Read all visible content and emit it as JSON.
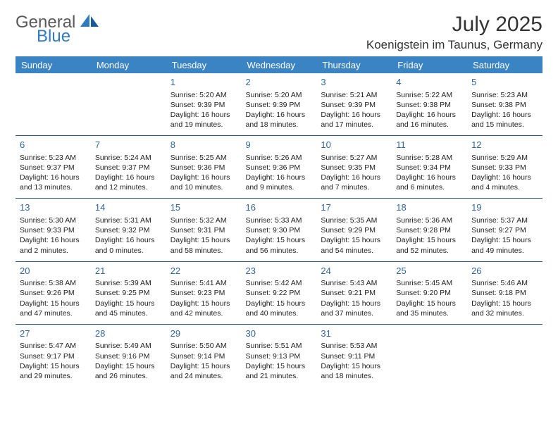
{
  "brand": {
    "part1": "General",
    "part2": "Blue"
  },
  "title": "July 2025",
  "location": "Koenigstein im Taunus, Germany",
  "colors": {
    "header_bg": "#3b84c4",
    "header_text": "#ffffff",
    "daynum": "#336699",
    "rule": "#2a5a8a",
    "brand_gray": "#5a5a5a",
    "brand_blue": "#2f7ac0"
  },
  "weekdays": [
    "Sunday",
    "Monday",
    "Tuesday",
    "Wednesday",
    "Thursday",
    "Friday",
    "Saturday"
  ],
  "leading_blanks": 2,
  "days": [
    {
      "n": 1,
      "sr": "5:20 AM",
      "ss": "9:39 PM",
      "dl": "16 hours and 19 minutes."
    },
    {
      "n": 2,
      "sr": "5:20 AM",
      "ss": "9:39 PM",
      "dl": "16 hours and 18 minutes."
    },
    {
      "n": 3,
      "sr": "5:21 AM",
      "ss": "9:39 PM",
      "dl": "16 hours and 17 minutes."
    },
    {
      "n": 4,
      "sr": "5:22 AM",
      "ss": "9:38 PM",
      "dl": "16 hours and 16 minutes."
    },
    {
      "n": 5,
      "sr": "5:23 AM",
      "ss": "9:38 PM",
      "dl": "16 hours and 15 minutes."
    },
    {
      "n": 6,
      "sr": "5:23 AM",
      "ss": "9:37 PM",
      "dl": "16 hours and 13 minutes."
    },
    {
      "n": 7,
      "sr": "5:24 AM",
      "ss": "9:37 PM",
      "dl": "16 hours and 12 minutes."
    },
    {
      "n": 8,
      "sr": "5:25 AM",
      "ss": "9:36 PM",
      "dl": "16 hours and 10 minutes."
    },
    {
      "n": 9,
      "sr": "5:26 AM",
      "ss": "9:36 PM",
      "dl": "16 hours and 9 minutes."
    },
    {
      "n": 10,
      "sr": "5:27 AM",
      "ss": "9:35 PM",
      "dl": "16 hours and 7 minutes."
    },
    {
      "n": 11,
      "sr": "5:28 AM",
      "ss": "9:34 PM",
      "dl": "16 hours and 6 minutes."
    },
    {
      "n": 12,
      "sr": "5:29 AM",
      "ss": "9:33 PM",
      "dl": "16 hours and 4 minutes."
    },
    {
      "n": 13,
      "sr": "5:30 AM",
      "ss": "9:33 PM",
      "dl": "16 hours and 2 minutes."
    },
    {
      "n": 14,
      "sr": "5:31 AM",
      "ss": "9:32 PM",
      "dl": "16 hours and 0 minutes."
    },
    {
      "n": 15,
      "sr": "5:32 AM",
      "ss": "9:31 PM",
      "dl": "15 hours and 58 minutes."
    },
    {
      "n": 16,
      "sr": "5:33 AM",
      "ss": "9:30 PM",
      "dl": "15 hours and 56 minutes."
    },
    {
      "n": 17,
      "sr": "5:35 AM",
      "ss": "9:29 PM",
      "dl": "15 hours and 54 minutes."
    },
    {
      "n": 18,
      "sr": "5:36 AM",
      "ss": "9:28 PM",
      "dl": "15 hours and 52 minutes."
    },
    {
      "n": 19,
      "sr": "5:37 AM",
      "ss": "9:27 PM",
      "dl": "15 hours and 49 minutes."
    },
    {
      "n": 20,
      "sr": "5:38 AM",
      "ss": "9:26 PM",
      "dl": "15 hours and 47 minutes."
    },
    {
      "n": 21,
      "sr": "5:39 AM",
      "ss": "9:25 PM",
      "dl": "15 hours and 45 minutes."
    },
    {
      "n": 22,
      "sr": "5:41 AM",
      "ss": "9:23 PM",
      "dl": "15 hours and 42 minutes."
    },
    {
      "n": 23,
      "sr": "5:42 AM",
      "ss": "9:22 PM",
      "dl": "15 hours and 40 minutes."
    },
    {
      "n": 24,
      "sr": "5:43 AM",
      "ss": "9:21 PM",
      "dl": "15 hours and 37 minutes."
    },
    {
      "n": 25,
      "sr": "5:45 AM",
      "ss": "9:20 PM",
      "dl": "15 hours and 35 minutes."
    },
    {
      "n": 26,
      "sr": "5:46 AM",
      "ss": "9:18 PM",
      "dl": "15 hours and 32 minutes."
    },
    {
      "n": 27,
      "sr": "5:47 AM",
      "ss": "9:17 PM",
      "dl": "15 hours and 29 minutes."
    },
    {
      "n": 28,
      "sr": "5:49 AM",
      "ss": "9:16 PM",
      "dl": "15 hours and 26 minutes."
    },
    {
      "n": 29,
      "sr": "5:50 AM",
      "ss": "9:14 PM",
      "dl": "15 hours and 24 minutes."
    },
    {
      "n": 30,
      "sr": "5:51 AM",
      "ss": "9:13 PM",
      "dl": "15 hours and 21 minutes."
    },
    {
      "n": 31,
      "sr": "5:53 AM",
      "ss": "9:11 PM",
      "dl": "15 hours and 18 minutes."
    }
  ],
  "labels": {
    "sunrise": "Sunrise:",
    "sunset": "Sunset:",
    "daylight": "Daylight:"
  }
}
